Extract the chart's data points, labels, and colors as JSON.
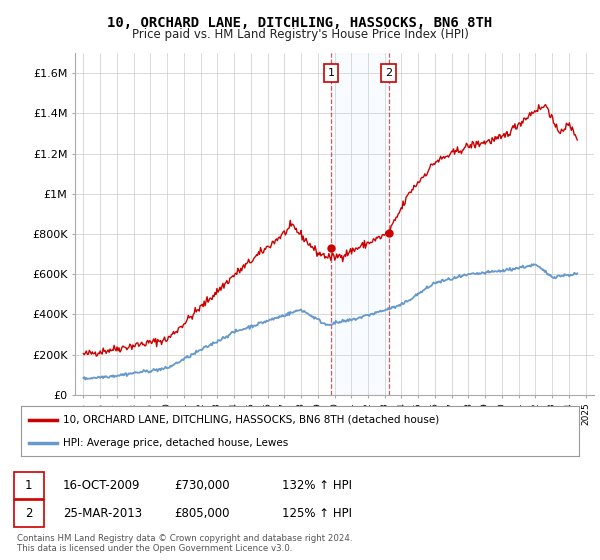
{
  "title": "10, ORCHARD LANE, DITCHLING, HASSOCKS, BN6 8TH",
  "subtitle": "Price paid vs. HM Land Registry's House Price Index (HPI)",
  "legend_line1": "10, ORCHARD LANE, DITCHLING, HASSOCKS, BN6 8TH (detached house)",
  "legend_line2": "HPI: Average price, detached house, Lewes",
  "footnote": "Contains HM Land Registry data © Crown copyright and database right 2024.\nThis data is licensed under the Open Government Licence v3.0.",
  "transaction1_label": "1",
  "transaction1_date": "16-OCT-2009",
  "transaction1_price": "£730,000",
  "transaction1_hpi": "132% ↑ HPI",
  "transaction2_label": "2",
  "transaction2_date": "25-MAR-2013",
  "transaction2_price": "£805,000",
  "transaction2_hpi": "125% ↑ HPI",
  "hpi_color": "#6699cc",
  "price_color": "#cc0000",
  "shaded_color": "#ddeeff",
  "background_color": "#ffffff",
  "grid_color": "#cccccc",
  "ylim": [
    0,
    1700000
  ],
  "yticks": [
    0,
    200000,
    400000,
    600000,
    800000,
    1000000,
    1200000,
    1400000,
    1600000
  ],
  "ytick_labels": [
    "£0",
    "£200K",
    "£400K",
    "£600K",
    "£800K",
    "£1M",
    "£1.2M",
    "£1.4M",
    "£1.6M"
  ],
  "marker1_x": 2009.79,
  "marker1_y": 730000,
  "marker2_x": 2013.23,
  "marker2_y": 805000,
  "shade_x1": 2009.79,
  "shade_x2": 2013.23,
  "xlim": [
    1994.5,
    2025.5
  ],
  "label1_box_color": "#cc0000",
  "label2_box_color": "#cc0000"
}
